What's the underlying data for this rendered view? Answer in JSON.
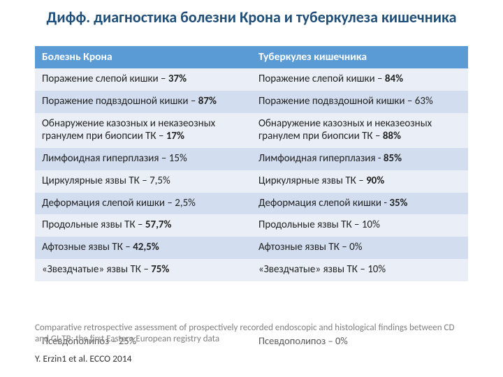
{
  "title": "Дифф. диагностика болезни Крона и туберкулеза кишечника",
  "columns": [
    "Болезнь Крона",
    "Туберкулез кишечника"
  ],
  "rows": [
    {
      "left_text": "Поражение слепой кишки – ",
      "left_pct": "37%",
      "right_text": "Поражение слепой кишки – ",
      "right_pct": "84%",
      "band": "a"
    },
    {
      "left_text": "Поражение подвздошной кишки – ",
      "left_pct": "87%",
      "right_text": "Поражение подвздошной кишки – ",
      "right_pct": "63%",
      "band": "b",
      "right_pct_bold": false,
      "left_pct_bold": true
    },
    {
      "left_text": "Обнаружение казозных и неказеозных гранулем при биопсии ТК – ",
      "left_pct": "17%",
      "right_text": "Обнаружение казозных и неказеозных гранулем при биопсии ТК – ",
      "right_pct": "88%",
      "band": "a"
    },
    {
      "left_text": "Лимфоидная гиперплазия – ",
      "left_pct": "15%",
      "right_text": "Лимфоидная гиперплазия  - ",
      "right_pct": "85%",
      "band": "b",
      "left_pct_bold": false
    },
    {
      "left_text": "Циркулярные язвы ТК – ",
      "left_pct": "7,5%",
      "right_text": "Циркулярные язвы  ТК – ",
      "right_pct": "90%",
      "band": "a",
      "left_pct_bold": false
    },
    {
      "left_text": "Деформация слепой кишки – ",
      "left_pct": "2,5%",
      "right_text": "Деформация слепой кишки  - ",
      "right_pct": "35%",
      "band": "b",
      "left_pct_bold": false
    },
    {
      "left_text": "Продольные язвы ТК – ",
      "left_pct": "57,7%",
      "right_text": "Продольные язвы ТК – ",
      "right_pct": "10%",
      "band": "a",
      "right_pct_bold": false
    },
    {
      "left_text": "Афтозные язвы ТК – ",
      "left_pct": "42,5%",
      "right_text": "Афтозные язвы ТК – ",
      "right_pct": "0%",
      "band": "b",
      "right_pct_bold": false
    },
    {
      "left_text": "«Звездчатые» язвы ТК – ",
      "left_pct": "75%",
      "right_text": "«Звездчатые» язвы ТК – ",
      "right_pct": "10%",
      "band": "a",
      "right_pct_bold": false
    }
  ],
  "overflow_row": {
    "left": "Псевдополипоз – 25%",
    "right": "Псевдополипоз – 0%"
  },
  "footnote": "Comparative retrospective assessment of prospectively recorded endoscopic and histological findings between CD and GI-TB; the first Eastern European registry data",
  "citation": "Y. Erzin1 et al. ECCO 2014",
  "colors": {
    "title": "#1f4e79",
    "header_bg": "#5b9bd5",
    "header_fg": "#ffffff",
    "band_a": "#eaeff7",
    "band_b": "#d2deef",
    "footnote": "#7f7f7f"
  }
}
